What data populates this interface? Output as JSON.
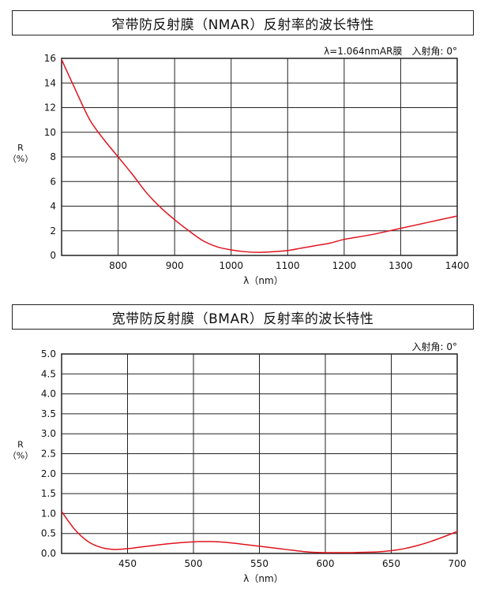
{
  "chart_data": [
    {
      "type": "line",
      "title": "窄带防反射膜（NMAR）反射率的波长特性",
      "annotation": "λ=1.064nmAR膜　入射角: 0°",
      "xlabel": "λ（nm）",
      "ylabel_line1": "R",
      "ylabel_line2": "（%）",
      "xlim": [
        700,
        1400
      ],
      "ylim": [
        0,
        16
      ],
      "xticks": [
        800,
        900,
        1000,
        1100,
        1200,
        1300,
        1400
      ],
      "yticks": [
        0,
        2,
        4,
        6,
        8,
        10,
        12,
        14,
        16
      ],
      "grid": true,
      "line_color": "#e0141e",
      "series": [
        {
          "x": [
            700,
            725,
            750,
            775,
            800,
            825,
            850,
            875,
            900,
            925,
            950,
            975,
            1000,
            1025,
            1050,
            1075,
            1100,
            1125,
            1150,
            1175,
            1200,
            1250,
            1300,
            1350,
            1400
          ],
          "y": [
            15.9,
            13.4,
            11.0,
            9.4,
            8.0,
            6.6,
            5.1,
            3.9,
            2.9,
            2.0,
            1.2,
            0.7,
            0.45,
            0.3,
            0.25,
            0.3,
            0.4,
            0.6,
            0.8,
            1.0,
            1.3,
            1.7,
            2.2,
            2.7,
            3.2
          ]
        }
      ]
    },
    {
      "type": "line",
      "title": "宽带防反射膜（BMAR）反射率的波长特性",
      "annotation": "入射角: 0°",
      "xlabel": "λ（nm）",
      "ylabel_line1": "R",
      "ylabel_line2": "（%）",
      "xlim": [
        400,
        700
      ],
      "ylim": [
        0,
        5
      ],
      "xticks": [
        450,
        500,
        550,
        600,
        650,
        700
      ],
      "yticks": [
        0.0,
        0.5,
        1.0,
        1.5,
        2.0,
        2.5,
        3.0,
        3.5,
        4.0,
        4.5,
        5.0
      ],
      "grid": true,
      "line_color": "#e0141e",
      "series": [
        {
          "x": [
            400,
            410,
            420,
            430,
            440,
            450,
            460,
            470,
            480,
            490,
            500,
            510,
            520,
            530,
            540,
            550,
            560,
            570,
            580,
            590,
            600,
            610,
            620,
            630,
            640,
            650,
            660,
            670,
            680,
            690,
            700
          ],
          "y": [
            1.05,
            0.6,
            0.3,
            0.15,
            0.1,
            0.12,
            0.16,
            0.2,
            0.24,
            0.27,
            0.29,
            0.3,
            0.29,
            0.26,
            0.22,
            0.18,
            0.14,
            0.1,
            0.06,
            0.03,
            0.02,
            0.02,
            0.02,
            0.03,
            0.04,
            0.07,
            0.12,
            0.2,
            0.3,
            0.42,
            0.55
          ]
        }
      ]
    }
  ]
}
